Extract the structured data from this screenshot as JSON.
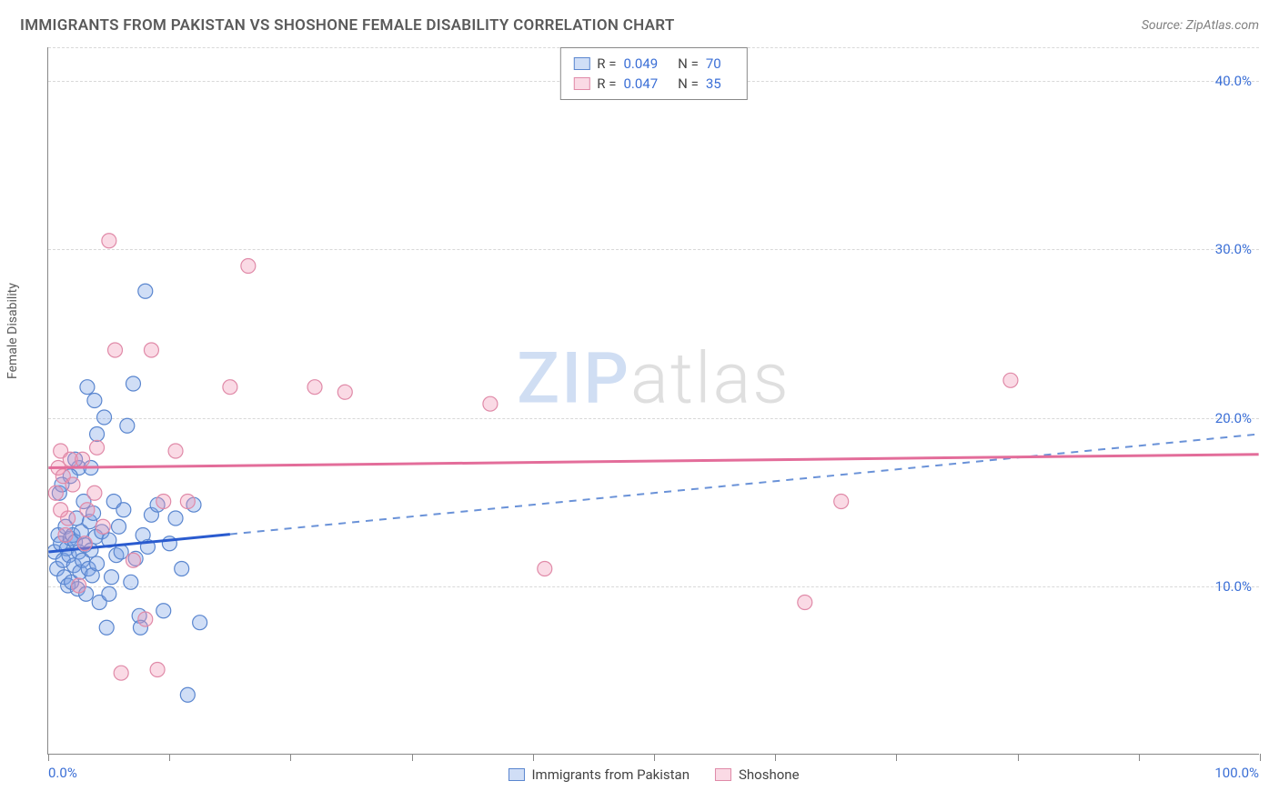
{
  "title": "IMMIGRANTS FROM PAKISTAN VS SHOSHONE FEMALE DISABILITY CORRELATION CHART",
  "source": "Source: ZipAtlas.com",
  "y_axis_label": "Female Disability",
  "watermark_a": "ZIP",
  "watermark_b": "atlas",
  "chart": {
    "type": "scatter",
    "xlim": [
      0,
      100
    ],
    "ylim": [
      0,
      42
    ],
    "y_ticks": [
      10,
      20,
      30,
      40
    ],
    "y_tick_labels": [
      "10.0%",
      "20.0%",
      "30.0%",
      "40.0%"
    ],
    "x_ticks": [
      0,
      10,
      20,
      30,
      40,
      50,
      60,
      70,
      80,
      90,
      100
    ],
    "x_label_start": "0.0%",
    "x_label_end": "100.0%",
    "background_color": "#ffffff",
    "grid_color": "#d8d8d8",
    "axis_color": "#888888",
    "tick_label_color": "#3b6fd6",
    "marker_radius": 8,
    "marker_stroke_width": 1.2,
    "series": [
      {
        "name": "Immigrants from Pakistan",
        "fill": "rgba(120,160,230,0.35)",
        "stroke": "#5a86cf",
        "line_color": "#2a5bcf",
        "line_dash_color": "#6a92d8",
        "trend": {
          "x1": 0,
          "y1": 12.0,
          "x2": 100,
          "y2": 19.0,
          "solid_until_x": 15
        },
        "R_label": "R = ",
        "R_value": "0.049",
        "N_label": "N = ",
        "N_value": "70",
        "points": [
          [
            0.5,
            12.0
          ],
          [
            0.7,
            11.0
          ],
          [
            0.8,
            13.0
          ],
          [
            1.0,
            12.5
          ],
          [
            1.2,
            11.5
          ],
          [
            1.3,
            10.5
          ],
          [
            1.4,
            13.5
          ],
          [
            1.5,
            12.2
          ],
          [
            1.6,
            10.0
          ],
          [
            1.7,
            11.8
          ],
          [
            1.8,
            12.8
          ],
          [
            1.9,
            10.2
          ],
          [
            2.0,
            13.0
          ],
          [
            2.1,
            11.2
          ],
          [
            2.2,
            12.6
          ],
          [
            2.3,
            14.0
          ],
          [
            2.4,
            9.8
          ],
          [
            2.5,
            12.0
          ],
          [
            2.6,
            10.8
          ],
          [
            2.7,
            13.2
          ],
          [
            2.8,
            11.5
          ],
          [
            2.9,
            15.0
          ],
          [
            3.0,
            12.4
          ],
          [
            3.1,
            9.5
          ],
          [
            3.2,
            21.8
          ],
          [
            3.3,
            11.0
          ],
          [
            3.4,
            13.8
          ],
          [
            3.5,
            12.1
          ],
          [
            3.6,
            10.6
          ],
          [
            3.7,
            14.3
          ],
          [
            3.8,
            21.0
          ],
          [
            3.9,
            12.9
          ],
          [
            4.0,
            11.3
          ],
          [
            4.2,
            9.0
          ],
          [
            4.4,
            13.2
          ],
          [
            4.6,
            20.0
          ],
          [
            4.8,
            7.5
          ],
          [
            5.0,
            12.7
          ],
          [
            5.2,
            10.5
          ],
          [
            5.4,
            15.0
          ],
          [
            5.6,
            11.8
          ],
          [
            5.8,
            13.5
          ],
          [
            6.0,
            12.0
          ],
          [
            6.2,
            14.5
          ],
          [
            6.5,
            19.5
          ],
          [
            6.8,
            10.2
          ],
          [
            7.0,
            22.0
          ],
          [
            7.2,
            11.6
          ],
          [
            7.5,
            8.2
          ],
          [
            7.6,
            7.5
          ],
          [
            7.8,
            13.0
          ],
          [
            8.0,
            27.5
          ],
          [
            8.2,
            12.3
          ],
          [
            8.5,
            14.2
          ],
          [
            9.0,
            14.8
          ],
          [
            9.5,
            8.5
          ],
          [
            10.0,
            12.5
          ],
          [
            10.5,
            14.0
          ],
          [
            11.0,
            11.0
          ],
          [
            11.5,
            3.5
          ],
          [
            12.0,
            14.8
          ],
          [
            12.5,
            7.8
          ],
          [
            2.5,
            17.0
          ],
          [
            3.5,
            17.0
          ],
          [
            1.8,
            16.5
          ],
          [
            0.9,
            15.5
          ],
          [
            1.1,
            16.0
          ],
          [
            2.2,
            17.5
          ],
          [
            4.0,
            19.0
          ],
          [
            5.0,
            9.5
          ]
        ]
      },
      {
        "name": "Shoshone",
        "fill": "rgba(240,150,180,0.35)",
        "stroke": "#e08aa8",
        "line_color": "#e36d9a",
        "trend": {
          "x1": 0,
          "y1": 17.0,
          "x2": 100,
          "y2": 17.8,
          "solid_until_x": 100
        },
        "R_label": "R = ",
        "R_value": "0.047",
        "N_label": "N = ",
        "N_value": "35",
        "points": [
          [
            0.6,
            15.5
          ],
          [
            0.8,
            17.0
          ],
          [
            1.0,
            18.0
          ],
          [
            1.2,
            16.5
          ],
          [
            1.4,
            13.0
          ],
          [
            1.6,
            14.0
          ],
          [
            1.8,
            17.5
          ],
          [
            1.0,
            14.5
          ],
          [
            2.0,
            16.0
          ],
          [
            2.5,
            10.0
          ],
          [
            3.0,
            12.5
          ],
          [
            3.2,
            14.5
          ],
          [
            4.0,
            18.2
          ],
          [
            4.5,
            13.5
          ],
          [
            5.0,
            30.5
          ],
          [
            5.5,
            24.0
          ],
          [
            6.0,
            4.8
          ],
          [
            7.0,
            11.5
          ],
          [
            8.0,
            8.0
          ],
          [
            8.5,
            24.0
          ],
          [
            9.5,
            15.0
          ],
          [
            10.5,
            18.0
          ],
          [
            11.5,
            15.0
          ],
          [
            9.0,
            5.0
          ],
          [
            15.0,
            21.8
          ],
          [
            16.5,
            29.0
          ],
          [
            22.0,
            21.8
          ],
          [
            24.5,
            21.5
          ],
          [
            36.5,
            20.8
          ],
          [
            41.0,
            11.0
          ],
          [
            62.5,
            9.0
          ],
          [
            65.5,
            15.0
          ],
          [
            79.5,
            22.2
          ],
          [
            2.8,
            17.5
          ],
          [
            3.8,
            15.5
          ]
        ]
      }
    ]
  },
  "bottom_legend": [
    {
      "label": "Immigrants from Pakistan",
      "fill": "rgba(120,160,230,0.35)",
      "stroke": "#5a86cf"
    },
    {
      "label": "Shoshone",
      "fill": "rgba(240,150,180,0.35)",
      "stroke": "#e08aa8"
    }
  ]
}
